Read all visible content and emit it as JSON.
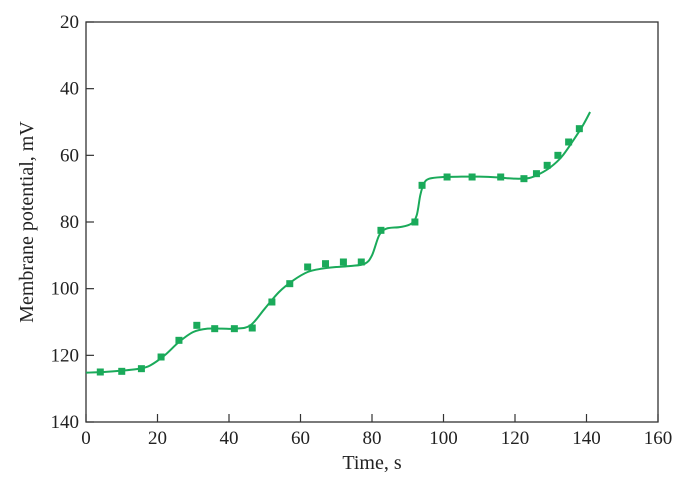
{
  "chart_data": {
    "type": "line",
    "xlabel": "Time, s",
    "ylabel": "Membrane potential, mV",
    "xlim": [
      0,
      160
    ],
    "ylim": [
      20,
      140
    ],
    "y_axis_inverted": true,
    "x_ticks": [
      0,
      20,
      40,
      60,
      80,
      100,
      120,
      140,
      160
    ],
    "y_ticks": [
      20,
      40,
      60,
      80,
      100,
      120,
      140
    ],
    "grid": false,
    "legend": "none",
    "colors": {
      "series": "#1aaa5a",
      "axis": "#333333"
    },
    "series": [
      {
        "style": "markers",
        "x": [
          4,
          10,
          15.5,
          21,
          26,
          31,
          36,
          41.5,
          46.5,
          52,
          57,
          62,
          67,
          72,
          77,
          82.5,
          92,
          94,
          101,
          108,
          116,
          122.5,
          126,
          129,
          132,
          135,
          138
        ],
        "y": [
          125,
          124.8,
          124,
          120.5,
          115.5,
          111,
          112,
          112,
          111.8,
          104,
          98.5,
          93.5,
          92.5,
          92,
          92,
          82.5,
          80,
          69,
          66.5,
          66.5,
          66.5,
          67,
          65.5,
          63,
          60,
          56,
          52
        ]
      },
      {
        "style": "line",
        "x": [
          0,
          5,
          10,
          15,
          18,
          22,
          26,
          30,
          34,
          38,
          42,
          46,
          50,
          54,
          58,
          62,
          66,
          70,
          74,
          78,
          80,
          82,
          84,
          88,
          91,
          92.5,
          93.5,
          94.5,
          96,
          100,
          105,
          110,
          115,
          120,
          124,
          127,
          130,
          133,
          136,
          139,
          141
        ],
        "y": [
          125.2,
          125,
          124.6,
          124,
          123,
          120,
          116,
          113,
          112,
          112,
          112,
          111,
          106,
          101,
          97.5,
          95,
          94,
          93.5,
          93.2,
          92.5,
          90,
          84,
          82,
          81.5,
          80.5,
          78,
          72,
          68.5,
          67,
          66.5,
          66.4,
          66.4,
          66.6,
          67,
          66.8,
          65.5,
          63.5,
          60.5,
          56,
          51,
          47
        ]
      }
    ]
  }
}
